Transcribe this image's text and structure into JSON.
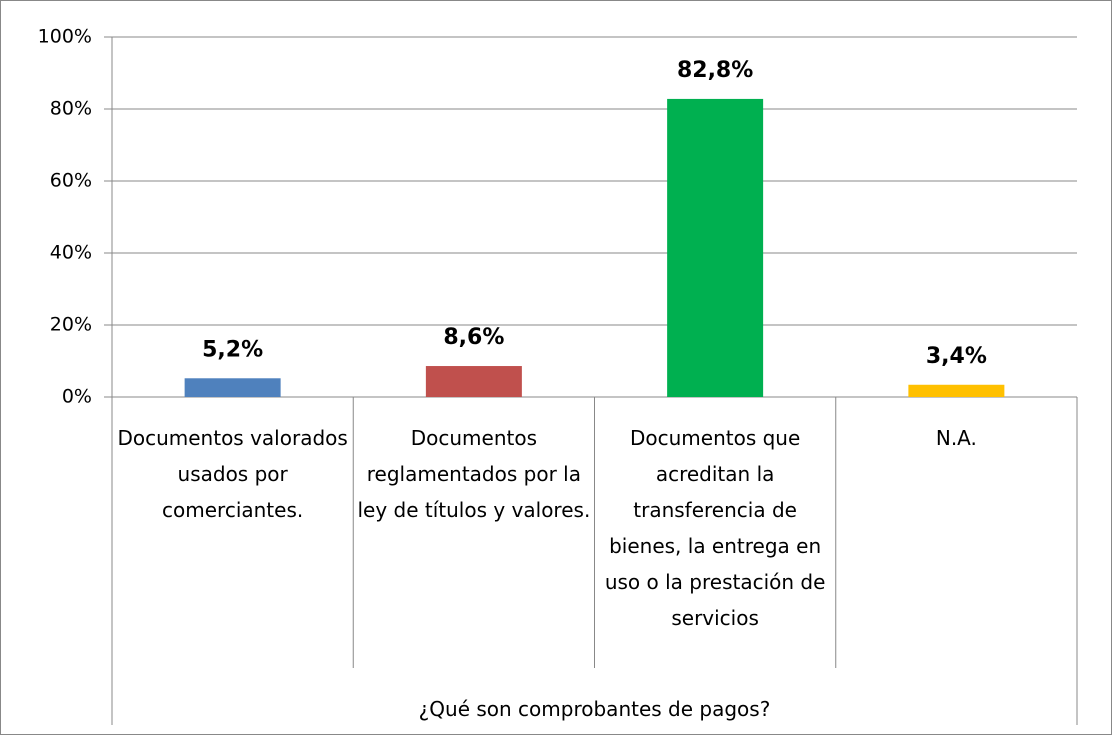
{
  "chart_data": {
    "type": "bar",
    "x_label": "¿Qué son comprobantes de pagos?",
    "categories": [
      "Documentos valorados usados por comerciantes.",
      "Documentos reglamentados por la ley de títulos y valores.",
      "Documentos que acreditan la transferencia de bienes, la entrega en uso o la prestación de servicios",
      "N.A."
    ],
    "values": [
      5.2,
      8.6,
      82.8,
      3.4
    ],
    "value_labels": [
      "5,2%",
      "8,6%",
      "82,8%",
      "3,4%"
    ],
    "colors": [
      "#4f81bd",
      "#c0504d",
      "#00b050",
      "#ffc000"
    ],
    "ylim": [
      0,
      100
    ],
    "yticks": [
      {
        "value": 0,
        "label": "0%"
      },
      {
        "value": 20,
        "label": "20%"
      },
      {
        "value": 40,
        "label": "40%"
      },
      {
        "value": 60,
        "label": "60%"
      },
      {
        "value": 80,
        "label": "80%"
      },
      {
        "value": 100,
        "label": "100%"
      }
    ],
    "grid": true
  }
}
